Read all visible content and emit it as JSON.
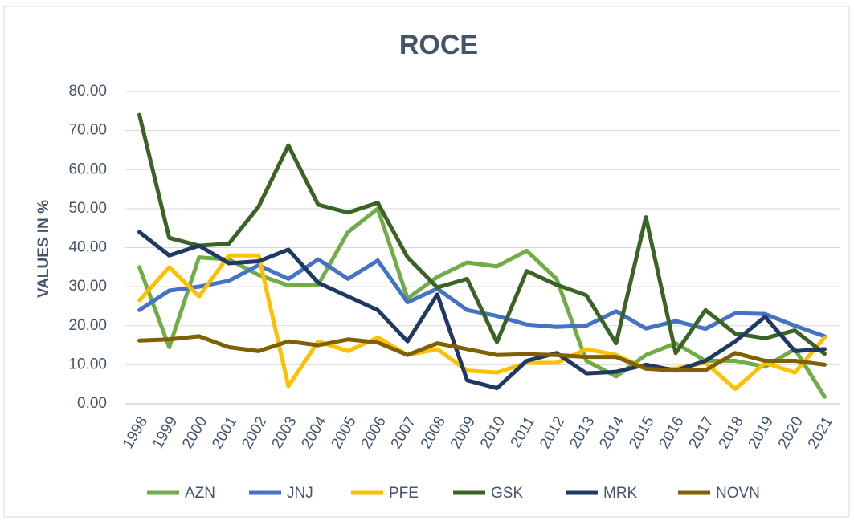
{
  "chart_data": {
    "type": "line",
    "title": "ROCE",
    "y_label": "VALUES IN %",
    "categories": [
      "1998",
      "1999",
      "2000",
      "2001",
      "2002",
      "2003",
      "2004",
      "2005",
      "2006",
      "2007",
      "2008",
      "2009",
      "2010",
      "2011",
      "2012",
      "2013",
      "2014",
      "2015",
      "2016",
      "2017",
      "2018",
      "2019",
      "2020",
      "2021"
    ],
    "ylim": [
      0,
      80
    ],
    "yticks": [
      {
        "value": 0,
        "label": "0.00"
      },
      {
        "value": 10,
        "label": "10.00"
      },
      {
        "value": 20,
        "label": "20.00"
      },
      {
        "value": 30,
        "label": "30.00"
      },
      {
        "value": 40,
        "label": "40.00"
      },
      {
        "value": 50,
        "label": "50.00"
      },
      {
        "value": 60,
        "label": "60.00"
      },
      {
        "value": 70,
        "label": "70.00"
      },
      {
        "value": 80,
        "label": "80.00"
      }
    ],
    "grid": true,
    "legend": "bottom",
    "series": [
      {
        "name": "AZN",
        "color": "#70ad47",
        "values": [
          35,
          14.5,
          37.5,
          37,
          33,
          30.3,
          30.5,
          44,
          50,
          27,
          32.5,
          36.2,
          35.2,
          39.2,
          32,
          11,
          7,
          12.5,
          15.5,
          11,
          11,
          9.5,
          14,
          1.8
        ]
      },
      {
        "name": "JNJ",
        "color": "#4472c4",
        "values": [
          24,
          29,
          30,
          31.5,
          35.5,
          32,
          37,
          32,
          36.7,
          26,
          29.5,
          24,
          22.5,
          20.3,
          19.7,
          20,
          23.7,
          19.3,
          21.2,
          19.2,
          23.2,
          23,
          20,
          17.3
        ]
      },
      {
        "name": "PFE",
        "color": "#ffc000",
        "values": [
          26.5,
          35,
          27.5,
          38,
          38,
          4.5,
          16,
          13.5,
          17,
          12.5,
          14,
          8.5,
          8,
          10.5,
          10.5,
          14,
          12.5,
          9,
          9,
          10.5,
          3.8,
          10.5,
          8,
          17
        ]
      },
      {
        "name": "GSK",
        "color": "#3b6325",
        "values": [
          74,
          42.5,
          40.5,
          41,
          50.5,
          66.2,
          51,
          49,
          51.5,
          37.5,
          29.8,
          32,
          15.8,
          34,
          30.5,
          27.8,
          15.5,
          47.8,
          13,
          24,
          18,
          16.8,
          18.8,
          12.8
        ]
      },
      {
        "name": "MRK",
        "color": "#203864",
        "values": [
          44,
          38,
          40.5,
          36,
          36.5,
          39.5,
          31,
          27.5,
          24,
          16,
          28,
          6,
          4,
          11,
          13,
          7.8,
          8.2,
          10,
          8.5,
          11,
          16,
          22.3,
          13.5,
          14
        ]
      },
      {
        "name": "NOVN",
        "color": "#806000",
        "values": [
          16.2,
          16.5,
          17.3,
          14.5,
          13.5,
          16,
          15,
          16.5,
          15.7,
          12.5,
          15.5,
          14,
          12.5,
          12.7,
          12.5,
          12,
          12,
          9,
          8.5,
          8.6,
          13,
          11,
          11,
          10
        ]
      }
    ]
  }
}
